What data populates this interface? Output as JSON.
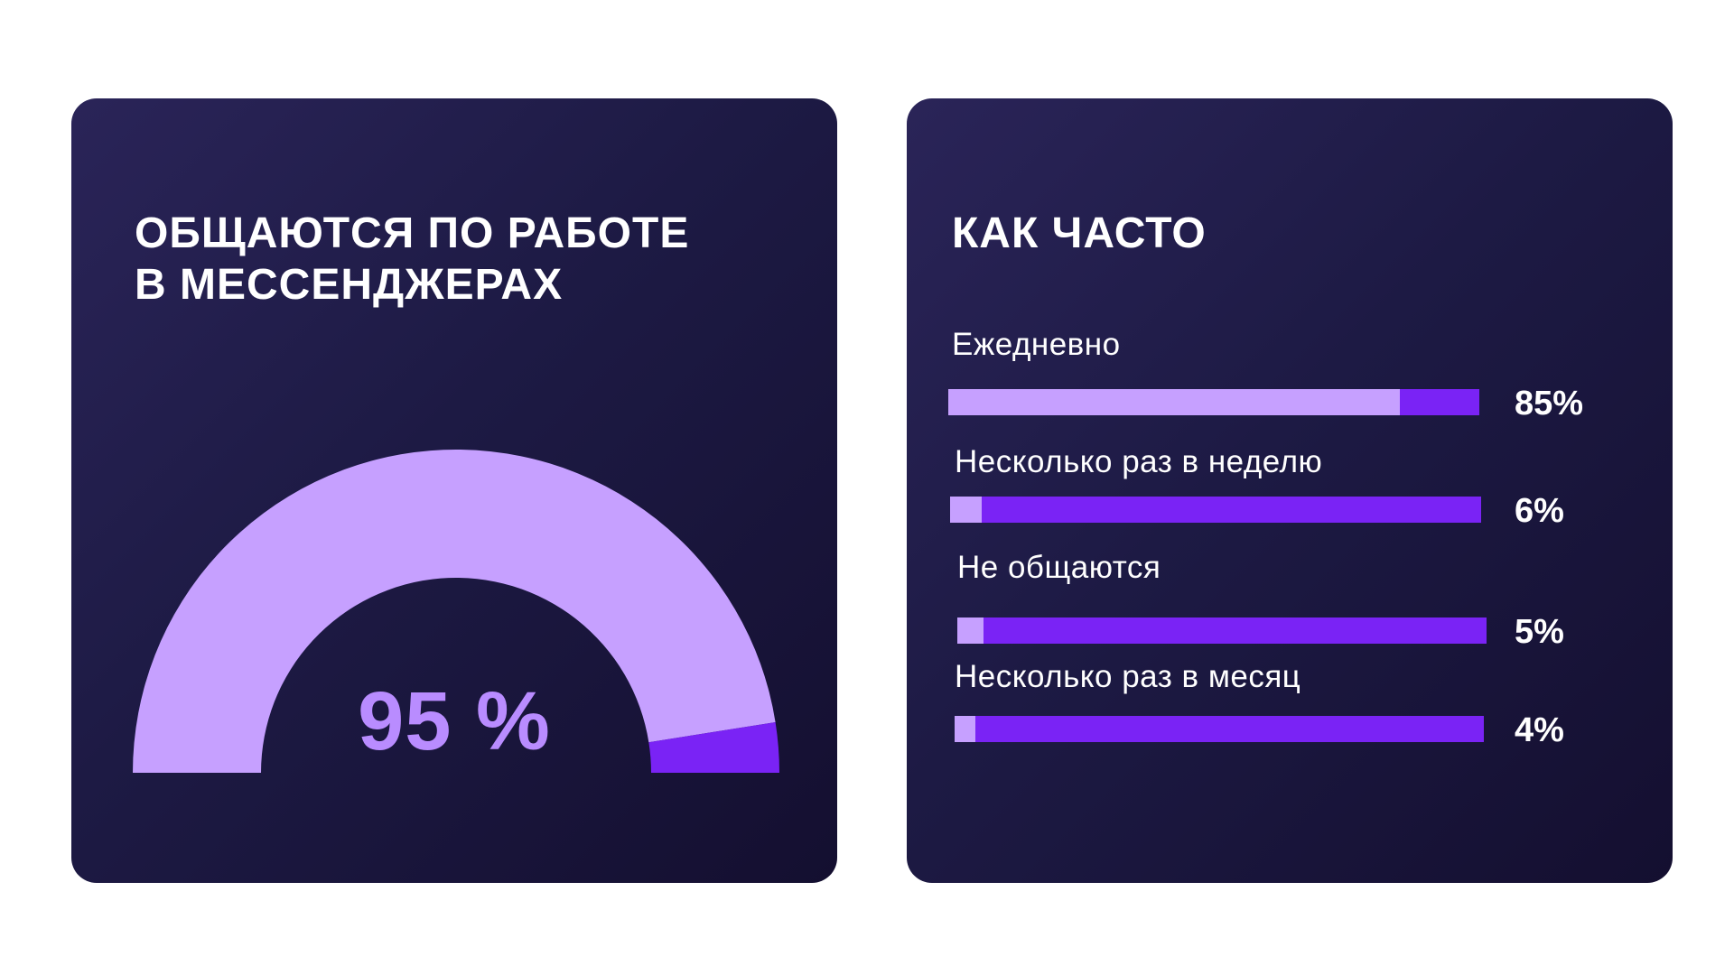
{
  "left_card": {
    "title_line1": "ОБЩАЮТСЯ ПО РАБОТЕ",
    "title_line2": "В МЕССЕНДЖЕРАХ",
    "gauge_label": "95 %"
  },
  "right_card": {
    "title": "КАК ЧАСТО"
  },
  "colors": {
    "card_bg": "#1d1a44",
    "fill_light": "#c6a0ff",
    "fill_accent": "#7a23f5",
    "gauge_text": "#b98cff",
    "text": "#ffffff"
  },
  "chart_data": [
    {
      "type": "gauge",
      "title": "ОБЩАЮТСЯ ПО РАБОТЕ В МЕССЕНДЖЕРАХ",
      "value": 95,
      "max": 100,
      "label": "95 %"
    },
    {
      "type": "bar",
      "orientation": "horizontal",
      "title": "КАК ЧАСТО",
      "categories": [
        "Ежедневно",
        "Несколько раз в неделю",
        "Не общаются",
        "Несколько раз в месяц"
      ],
      "values": [
        85,
        6,
        5,
        4
      ],
      "value_labels": [
        "85%",
        "6%",
        "5%",
        "4%"
      ],
      "xlim": [
        0,
        100
      ]
    }
  ]
}
